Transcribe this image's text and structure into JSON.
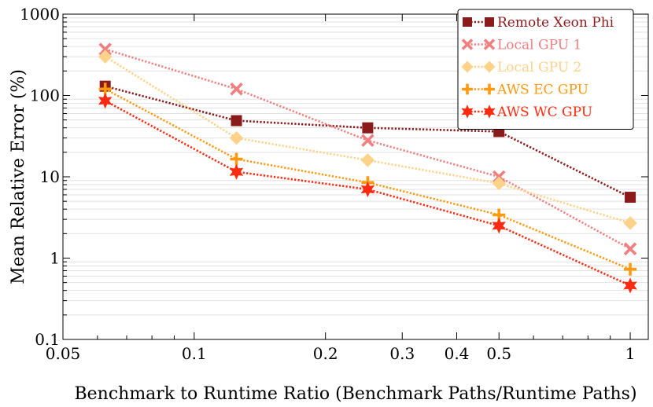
{
  "chart_data": {
    "type": "line",
    "xscale": "log",
    "yscale": "log",
    "xlabel": "Benchmark to Runtime Ratio (Benchmark Paths/Runtime Paths)",
    "ylabel": "Mean Relative Error (%)",
    "xlim": [
      0.05,
      1.1
    ],
    "ylim": [
      0.1,
      1000
    ],
    "xticks": [
      0.05,
      0.1,
      0.2,
      0.3,
      0.4,
      0.5,
      1
    ],
    "xtick_labels": [
      "0.05",
      "0.1",
      "0.2",
      "0.3",
      "0.4",
      "0.5",
      "1"
    ],
    "yticks": [
      0.1,
      1,
      10,
      100,
      1000
    ],
    "ytick_labels": [
      "0.1",
      "1",
      "10",
      "100",
      "1000"
    ],
    "x": [
      0.0625,
      0.125,
      0.25,
      0.5,
      1
    ],
    "legend_position": "top-right",
    "series": [
      {
        "name": "Remote Xeon Phi",
        "marker": "square",
        "color": "#8b1a1a",
        "values": [
          130,
          49,
          40,
          36,
          5.6
        ]
      },
      {
        "name": "Local GPU 1",
        "marker": "x",
        "color": "#f08080",
        "values": [
          370,
          120,
          28,
          10,
          1.3
        ]
      },
      {
        "name": "Local GPU 2",
        "marker": "diamond",
        "color": "#ffd28a",
        "values": [
          300,
          30,
          16,
          8.3,
          2.7
        ]
      },
      {
        "name": "AWS EC GPU",
        "marker": "plus",
        "color": "#ff9a10",
        "values": [
          120,
          16.5,
          8.5,
          3.4,
          0.73
        ]
      },
      {
        "name": "AWS WC GPU",
        "marker": "star",
        "color": "#ff2a10",
        "values": [
          86,
          11.5,
          7,
          2.5,
          0.46
        ]
      }
    ]
  }
}
